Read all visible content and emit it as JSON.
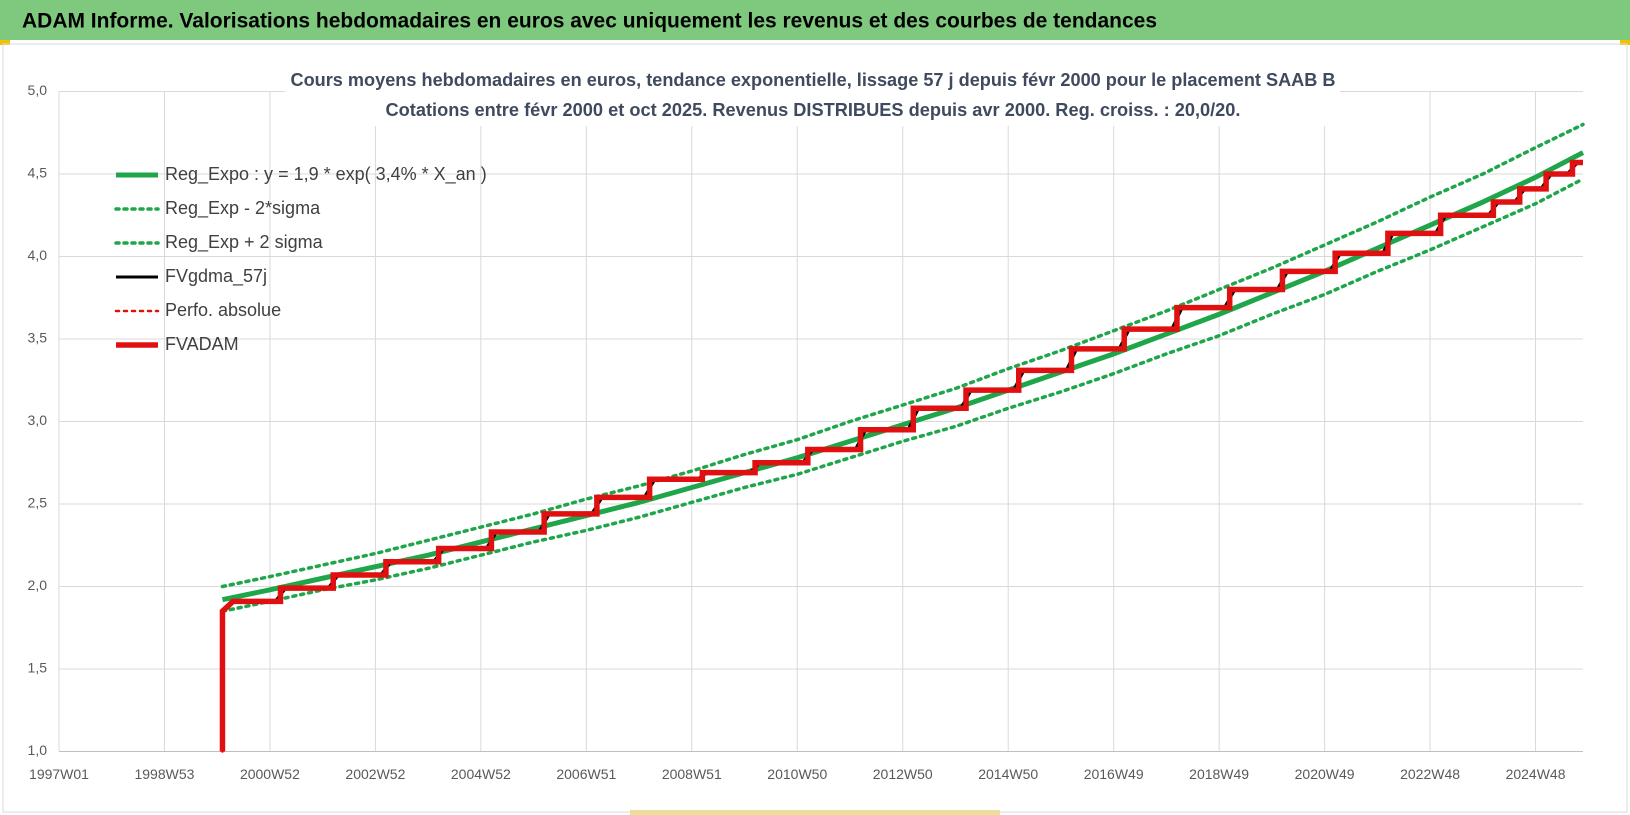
{
  "header": {
    "title": "ADAM Informe. Valorisations hebdomadaires en euros avec uniquement les revenus et des courbes de tendances"
  },
  "chart_data": {
    "type": "line",
    "title": "Cours moyens hebdomadaires en euros, tendance exponentielle, lissage 57 j depuis févr 2000 pour le placement SAAB B",
    "subtitle": "Cotations entre févr 2000 et oct 2025. Revenus DISTRIBUES depuis avr 2000. Reg. croiss. : 20,0/20.",
    "xlim": [
      1997,
      2025.9
    ],
    "xticks": [
      {
        "value": 1997,
        "label": "1997W01"
      },
      {
        "value": 1999,
        "label": "1998W53"
      },
      {
        "value": 2001,
        "label": "2000W52"
      },
      {
        "value": 2003,
        "label": "2002W52"
      },
      {
        "value": 2005,
        "label": "2004W52"
      },
      {
        "value": 2007,
        "label": "2006W51"
      },
      {
        "value": 2009,
        "label": "2008W51"
      },
      {
        "value": 2011,
        "label": "2010W50"
      },
      {
        "value": 2013,
        "label": "2012W50"
      },
      {
        "value": 2015,
        "label": "2014W50"
      },
      {
        "value": 2017,
        "label": "2016W49"
      },
      {
        "value": 2019,
        "label": "2018W49"
      },
      {
        "value": 2021,
        "label": "2020W49"
      },
      {
        "value": 2023,
        "label": "2022W48"
      },
      {
        "value": 2025,
        "label": "2024W48"
      }
    ],
    "ylim": [
      1.0,
      5.0
    ],
    "yticks": [
      {
        "value": 1.0,
        "label": "1,0"
      },
      {
        "value": 1.5,
        "label": "1,5"
      },
      {
        "value": 2.0,
        "label": "2,0"
      },
      {
        "value": 2.5,
        "label": "2,5"
      },
      {
        "value": 3.0,
        "label": "3,0"
      },
      {
        "value": 3.5,
        "label": "3,5"
      },
      {
        "value": 4.0,
        "label": "4,0"
      },
      {
        "value": 4.5,
        "label": "4,5"
      },
      {
        "value": 5.0,
        "label": "5,0"
      }
    ],
    "grid": true,
    "legend": "upper left",
    "series": [
      {
        "name": "Reg_Expo : y = 1,9 * exp( 3,4% *  X_an )",
        "color": "#1fa64a",
        "style": "solid",
        "x": [
          2000.1,
          2001,
          2002,
          2003,
          2004,
          2005,
          2006,
          2007,
          2008,
          2009,
          2010,
          2011,
          2012,
          2013,
          2014,
          2015,
          2016,
          2017,
          2018,
          2019,
          2020,
          2021,
          2022,
          2023,
          2024,
          2025,
          2025.9
        ],
        "values": [
          1.92,
          1.98,
          2.05,
          2.12,
          2.19,
          2.27,
          2.35,
          2.43,
          2.51,
          2.6,
          2.69,
          2.78,
          2.88,
          2.98,
          3.08,
          3.19,
          3.3,
          3.41,
          3.53,
          3.65,
          3.78,
          3.91,
          4.05,
          4.19,
          4.33,
          4.48,
          4.63
        ]
      },
      {
        "name": "Reg_Exp - 2*sigma",
        "color": "#1fa64a",
        "style": "dotted",
        "x": [
          2000.1,
          2001,
          2002,
          2003,
          2004,
          2005,
          2006,
          2007,
          2008,
          2009,
          2010,
          2011,
          2012,
          2013,
          2014,
          2015,
          2016,
          2017,
          2018,
          2019,
          2020,
          2021,
          2022,
          2023,
          2024,
          2025,
          2025.9
        ],
        "values": [
          1.85,
          1.91,
          1.98,
          2.04,
          2.11,
          2.19,
          2.27,
          2.34,
          2.42,
          2.51,
          2.6,
          2.68,
          2.78,
          2.88,
          2.97,
          3.08,
          3.18,
          3.29,
          3.41,
          3.52,
          3.65,
          3.77,
          3.91,
          4.04,
          4.18,
          4.32,
          4.47
        ]
      },
      {
        "name": "Reg_Exp + 2 sigma",
        "color": "#1fa64a",
        "style": "dotted",
        "x": [
          2000.1,
          2001,
          2002,
          2003,
          2004,
          2005,
          2006,
          2007,
          2008,
          2009,
          2010,
          2011,
          2012,
          2013,
          2014,
          2015,
          2016,
          2017,
          2018,
          2019,
          2020,
          2021,
          2022,
          2023,
          2024,
          2025,
          2025.9
        ],
        "values": [
          2.0,
          2.06,
          2.13,
          2.2,
          2.28,
          2.36,
          2.44,
          2.53,
          2.61,
          2.7,
          2.8,
          2.89,
          3.0,
          3.1,
          3.2,
          3.32,
          3.43,
          3.55,
          3.67,
          3.8,
          3.93,
          4.07,
          4.21,
          4.36,
          4.5,
          4.66,
          4.8
        ]
      },
      {
        "name": "FVgdma_57j",
        "color": "#000000",
        "style": "solid",
        "x": [
          2000.1,
          2000.1,
          2000.3,
          2001.1,
          2001.3,
          2002.1,
          2002.3,
          2003.1,
          2003.3,
          2004.1,
          2004.3,
          2005.1,
          2005.3,
          2006.1,
          2006.3,
          2007.1,
          2007.3,
          2008.1,
          2008.3,
          2009.1,
          2009.3,
          2010.1,
          2010.3,
          2011.1,
          2011.3,
          2012.1,
          2012.3,
          2013.1,
          2013.3,
          2014.1,
          2014.3,
          2015.1,
          2015.3,
          2016.1,
          2016.3,
          2017.1,
          2017.3,
          2018.1,
          2018.3,
          2019.1,
          2019.3,
          2020.1,
          2020.3,
          2021.1,
          2021.3,
          2022.1,
          2022.3,
          2023.1,
          2023.3,
          2024.1,
          2024.3,
          2024.6,
          2024.8,
          2025.1,
          2025.3,
          2025.6,
          2025.8,
          2025.9
        ],
        "values": [
          1.0,
          1.85,
          1.91,
          1.91,
          1.99,
          1.99,
          2.07,
          2.07,
          2.15,
          2.15,
          2.23,
          2.23,
          2.33,
          2.33,
          2.44,
          2.44,
          2.54,
          2.54,
          2.65,
          2.65,
          2.69,
          2.69,
          2.75,
          2.75,
          2.83,
          2.83,
          2.95,
          2.95,
          3.08,
          3.08,
          3.19,
          3.19,
          3.31,
          3.31,
          3.44,
          3.44,
          3.56,
          3.56,
          3.69,
          3.69,
          3.8,
          3.8,
          3.91,
          3.91,
          4.02,
          4.02,
          4.14,
          4.14,
          4.25,
          4.25,
          4.33,
          4.33,
          4.41,
          4.41,
          4.5,
          4.5,
          4.57,
          4.57
        ]
      },
      {
        "name": "Perfo. absolue",
        "color": "#e01010",
        "style": "dotted",
        "x": [
          2000.1,
          2000.1,
          2000.3,
          2001.2,
          2001.2,
          2002.2,
          2002.2,
          2003.2,
          2003.2,
          2004.2,
          2004.2,
          2005.2,
          2005.2,
          2006.2,
          2006.2,
          2007.2,
          2007.2,
          2008.2,
          2008.2,
          2009.2,
          2009.2,
          2010.2,
          2010.2,
          2011.2,
          2011.2,
          2012.2,
          2012.2,
          2013.2,
          2013.2,
          2014.2,
          2014.2,
          2015.2,
          2015.2,
          2016.2,
          2016.2,
          2017.2,
          2017.2,
          2018.2,
          2018.2,
          2019.2,
          2019.2,
          2020.2,
          2020.2,
          2021.2,
          2021.2,
          2022.2,
          2022.2,
          2023.2,
          2023.2,
          2024.2,
          2024.2,
          2024.7,
          2024.7,
          2025.2,
          2025.2,
          2025.7,
          2025.7,
          2025.9
        ],
        "values": [
          1.0,
          1.85,
          1.91,
          1.91,
          1.99,
          1.99,
          2.07,
          2.07,
          2.15,
          2.15,
          2.23,
          2.23,
          2.33,
          2.33,
          2.44,
          2.44,
          2.54,
          2.54,
          2.65,
          2.65,
          2.69,
          2.69,
          2.75,
          2.75,
          2.83,
          2.83,
          2.95,
          2.95,
          3.08,
          3.08,
          3.19,
          3.19,
          3.31,
          3.31,
          3.44,
          3.44,
          3.56,
          3.56,
          3.69,
          3.69,
          3.8,
          3.8,
          3.91,
          3.91,
          4.02,
          4.02,
          4.14,
          4.14,
          4.25,
          4.25,
          4.33,
          4.33,
          4.41,
          4.41,
          4.5,
          4.5,
          4.57,
          4.57
        ]
      },
      {
        "name": "FVADAM",
        "color": "#e01010",
        "style": "solid",
        "x": [
          2000.1,
          2000.1,
          2000.3,
          2001.2,
          2001.2,
          2002.2,
          2002.2,
          2003.2,
          2003.2,
          2004.2,
          2004.2,
          2005.2,
          2005.2,
          2006.2,
          2006.2,
          2007.2,
          2007.2,
          2008.2,
          2008.2,
          2009.2,
          2009.2,
          2010.2,
          2010.2,
          2011.2,
          2011.2,
          2012.2,
          2012.2,
          2013.2,
          2013.2,
          2014.2,
          2014.2,
          2015.2,
          2015.2,
          2016.2,
          2016.2,
          2017.2,
          2017.2,
          2018.2,
          2018.2,
          2019.2,
          2019.2,
          2020.2,
          2020.2,
          2021.2,
          2021.2,
          2022.2,
          2022.2,
          2023.2,
          2023.2,
          2024.2,
          2024.2,
          2024.7,
          2024.7,
          2025.2,
          2025.2,
          2025.7,
          2025.7,
          2025.9
        ],
        "values": [
          1.0,
          1.85,
          1.91,
          1.91,
          1.99,
          1.99,
          2.07,
          2.07,
          2.15,
          2.15,
          2.23,
          2.23,
          2.33,
          2.33,
          2.44,
          2.44,
          2.54,
          2.54,
          2.65,
          2.65,
          2.69,
          2.69,
          2.75,
          2.75,
          2.83,
          2.83,
          2.95,
          2.95,
          3.08,
          3.08,
          3.19,
          3.19,
          3.31,
          3.31,
          3.44,
          3.44,
          3.56,
          3.56,
          3.69,
          3.69,
          3.8,
          3.8,
          3.91,
          3.91,
          4.02,
          4.02,
          4.14,
          4.14,
          4.25,
          4.25,
          4.33,
          4.33,
          4.41,
          4.41,
          4.5,
          4.5,
          4.57,
          4.57
        ]
      }
    ]
  }
}
